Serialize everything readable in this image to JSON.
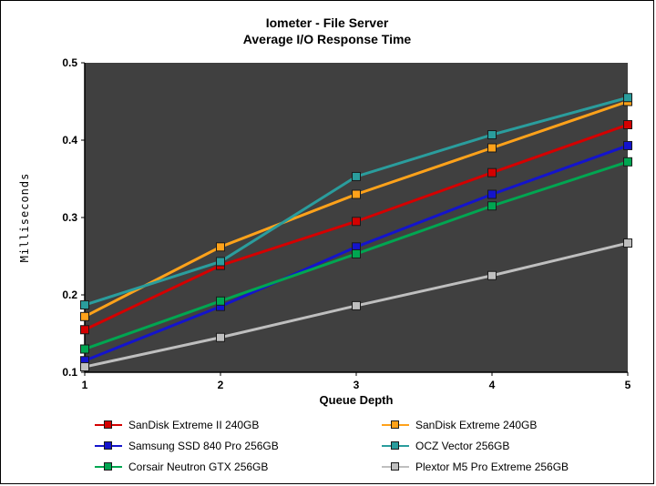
{
  "chart_data": {
    "type": "line",
    "title_line1": "Iometer - File Server",
    "title_line2": "Average I/O Response Time",
    "xlabel": "Queue Depth",
    "ylabel": "Milliseconds",
    "xlim": [
      1,
      5
    ],
    "ylim": [
      0.1,
      0.5
    ],
    "x_ticks": [
      1,
      2,
      3,
      4,
      5
    ],
    "y_ticks": [
      0.1,
      0.2,
      0.3,
      0.4,
      0.5
    ],
    "x": [
      1,
      2,
      3,
      4,
      5
    ],
    "grid": false,
    "legend_position": "bottom",
    "plot_bg": "#404040",
    "axis_color": "#000000",
    "marker_edge": "#1a1a1a",
    "series": [
      {
        "name": "SanDisk Extreme II 240GB",
        "color": "#d40000",
        "values": [
          0.155,
          0.238,
          0.295,
          0.358,
          0.42
        ]
      },
      {
        "name": "SanDisk Extreme 240GB",
        "color": "#ffa21a",
        "values": [
          0.172,
          0.262,
          0.33,
          0.39,
          0.45
        ]
      },
      {
        "name": "Samsung SSD 840 Pro 256GB",
        "color": "#1414cc",
        "values": [
          0.115,
          0.185,
          0.262,
          0.33,
          0.393
        ]
      },
      {
        "name": "OCZ Vector 256GB",
        "color": "#2a9d9d",
        "values": [
          0.187,
          0.243,
          0.353,
          0.407,
          0.455
        ]
      },
      {
        "name": "Corsair Neutron GTX 256GB",
        "color": "#00a651",
        "values": [
          0.13,
          0.192,
          0.253,
          0.315,
          0.372
        ]
      },
      {
        "name": "Plextor M5 Pro Extreme 256GB",
        "color": "#bfbfbf",
        "values": [
          0.107,
          0.145,
          0.186,
          0.225,
          0.267
        ]
      }
    ]
  }
}
